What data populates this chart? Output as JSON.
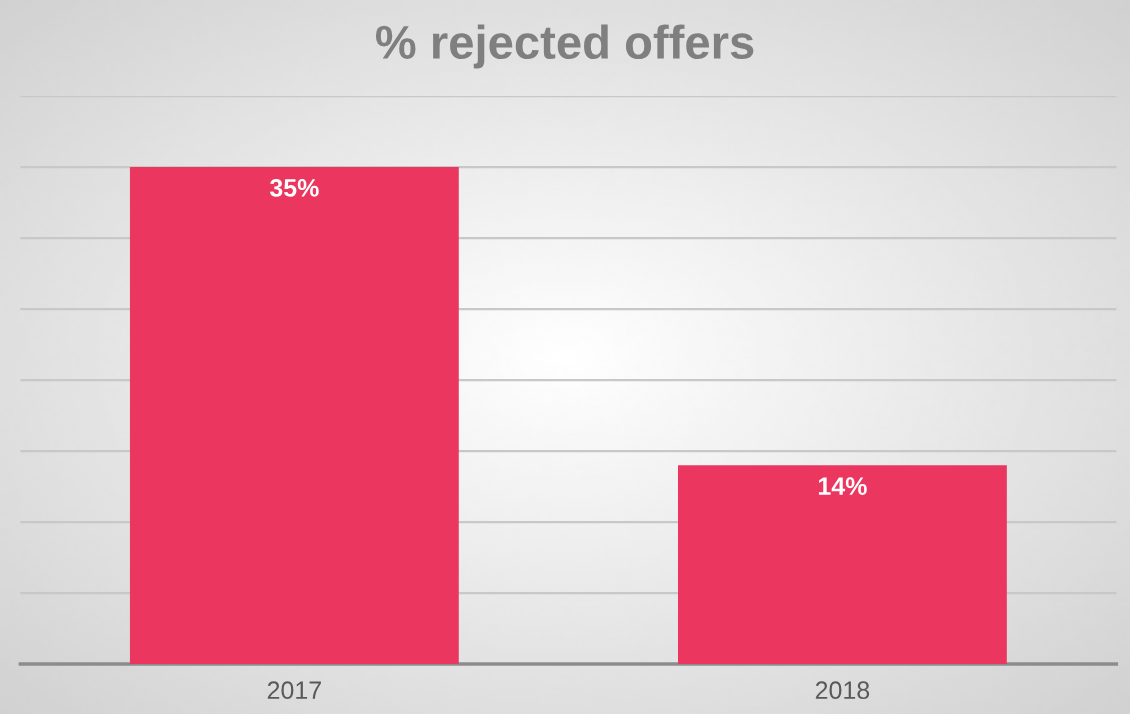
{
  "chart_data": {
    "type": "bar",
    "title": "% rejected offers",
    "categories": [
      "2017",
      "2018"
    ],
    "values": [
      35,
      14
    ],
    "color": "#eb3660",
    "value_labels": [
      "35%",
      "14%"
    ],
    "ylim": [
      0,
      40
    ],
    "yticks": [
      {
        "value": 0,
        "label": null
      },
      {
        "value": 5,
        "label": null
      },
      {
        "value": 10,
        "label": null
      },
      {
        "value": 15,
        "label": null
      },
      {
        "value": 20,
        "label": null
      },
      {
        "value": 25,
        "label": null
      },
      {
        "value": 30,
        "label": null
      },
      {
        "value": 35,
        "label": null
      },
      {
        "value": 40,
        "label": null
      }
    ],
    "tick_labels": "x",
    "grid": "y",
    "legend": false
  }
}
